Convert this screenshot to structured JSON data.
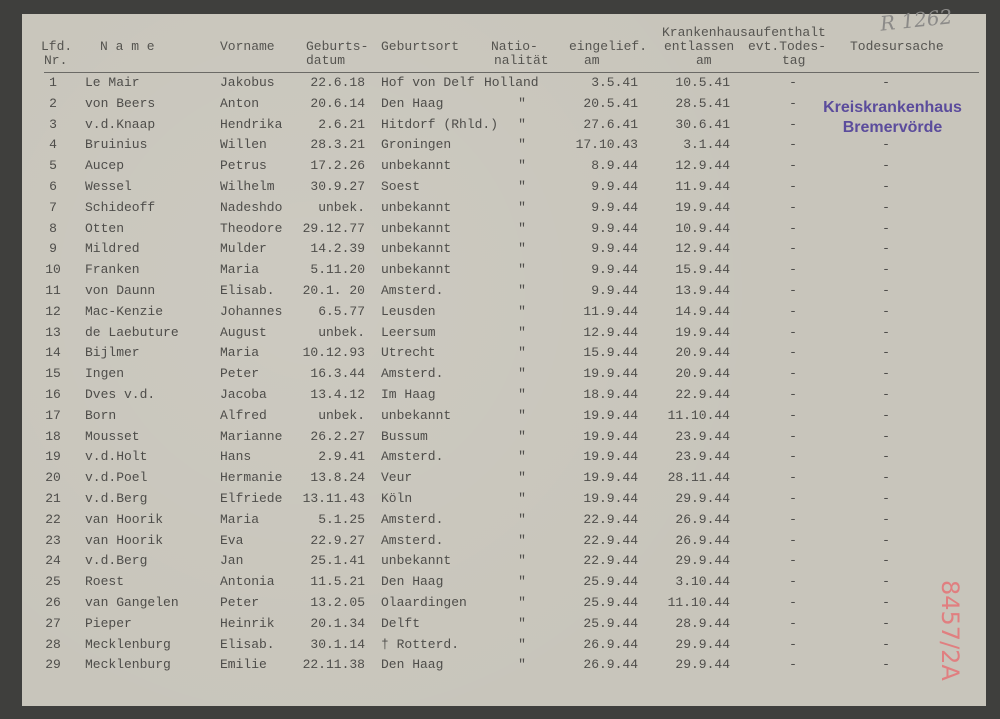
{
  "document": {
    "headers": {
      "lfd_nr": [
        "Lfd.",
        "Nr."
      ],
      "name": "N a m e",
      "vorname": "Vorname",
      "geburtsdatum": [
        "Geburts-",
        "datum"
      ],
      "geburtsort": "Geburtsort",
      "nationalitaet": [
        "Natio-",
        "nalität"
      ],
      "group": "Krankenhausaufenthalt",
      "eingeliefert": [
        "eingelief.",
        "am"
      ],
      "entlassen": [
        "entlassen",
        "am"
      ],
      "todestag": [
        "evt.Todes-",
        "tag"
      ],
      "todesursache": "Todesursache"
    },
    "rows": [
      [
        "1",
        "Le Mair",
        "Jakobus",
        "22.6.18",
        "Hof von Delf",
        "Holland",
        "3.5.41",
        "10.5.41",
        "-",
        "-"
      ],
      [
        "2",
        "von Beers",
        "Anton",
        "20.6.14",
        "Den Haag",
        "\"",
        "20.5.41",
        "28.5.41",
        "-",
        ""
      ],
      [
        "3",
        "v.d.Knaap",
        "Hendrika",
        "2.6.21",
        "Hitdorf (Rhld.)",
        "\"",
        "27.6.41",
        "30.6.41",
        "-",
        ""
      ],
      [
        "4",
        "Bruinius",
        "Willen",
        "28.3.21",
        "Groningen",
        "\"",
        "17.10.43",
        "3.1.44",
        "-",
        "-"
      ],
      [
        "5",
        "Aucep",
        "Petrus",
        "17.2.26",
        "unbekannt",
        "\"",
        "8.9.44",
        "12.9.44",
        "-",
        "-"
      ],
      [
        "6",
        "Wessel",
        "Wilhelm",
        "30.9.27",
        "Soest",
        "\"",
        "9.9.44",
        "11.9.44",
        "-",
        "-"
      ],
      [
        "7",
        "Schideoff",
        "Nadeshdo",
        "unbek.",
        "unbekannt",
        "\"",
        "9.9.44",
        "19.9.44",
        "-",
        "-"
      ],
      [
        "8",
        "Otten",
        "Theodore",
        "29.12.77",
        "unbekannt",
        "\"",
        "9.9.44",
        "10.9.44",
        "-",
        "-"
      ],
      [
        "9",
        "Mildred",
        "Mulder",
        "14.2.39",
        "unbekannt",
        "\"",
        "9.9.44",
        "12.9.44",
        "-",
        "-"
      ],
      [
        "10",
        "Franken",
        "Maria",
        "5.11.20",
        "unbekannt",
        "\"",
        "9.9.44",
        "15.9.44",
        "-",
        "-"
      ],
      [
        "11",
        "von Daunn",
        "Elisab.",
        "20.1. 20",
        "Amsterd.",
        "\"",
        "9.9.44",
        "13.9.44",
        "-",
        "-"
      ],
      [
        "12",
        "Mac-Kenzie",
        "Johannes",
        "6.5.77",
        "Leusden",
        "\"",
        "11.9.44",
        "14.9.44",
        "-",
        "-"
      ],
      [
        "13",
        "de Laebuture",
        "August",
        "unbek.",
        "Leersum",
        "\"",
        "12.9.44",
        "19.9.44",
        "-",
        "-"
      ],
      [
        "14",
        "Bijlmer",
        "Maria",
        "10.12.93",
        "Utrecht",
        "\"",
        "15.9.44",
        "20.9.44",
        "-",
        "-"
      ],
      [
        "15",
        "Ingen",
        "Peter",
        "16.3.44",
        "Amsterd.",
        "\"",
        "19.9.44",
        "20.9.44",
        "-",
        "-"
      ],
      [
        "16",
        "Dves v.d.",
        "Jacoba",
        "13.4.12",
        "Im Haag",
        "\"",
        "18.9.44",
        "22.9.44",
        "-",
        "-"
      ],
      [
        "17",
        "Born",
        "Alfred",
        "unbek.",
        "unbekannt",
        "\"",
        "19.9.44",
        "11.10.44",
        "-",
        "-"
      ],
      [
        "18",
        "Mousset",
        "Marianne",
        "26.2.27",
        "Bussum",
        "\"",
        "19.9.44",
        "23.9.44",
        "-",
        "-"
      ],
      [
        "19",
        "v.d.Holt",
        "Hans",
        "2.9.41",
        "Amsterd.",
        "\"",
        "19.9.44",
        "23.9.44",
        "-",
        "-"
      ],
      [
        "20",
        "v.d.Poel",
        "Hermanie",
        "13.8.24",
        "Veur",
        "\"",
        "19.9.44",
        "28.11.44",
        "-",
        "-"
      ],
      [
        "21",
        "v.d.Berg",
        "Elfriede",
        "13.11.43",
        "Köln",
        "\"",
        "19.9.44",
        "29.9.44",
        "-",
        "-"
      ],
      [
        "22",
        "van Hoorik",
        "Maria",
        "5.1.25",
        "Amsterd.",
        "\"",
        "22.9.44",
        "26.9.44",
        "-",
        "-"
      ],
      [
        "23",
        "van Hoorik",
        "Eva",
        "22.9.27",
        "Amsterd.",
        "\"",
        "22.9.44",
        "26.9.44",
        "-",
        "-"
      ],
      [
        "24",
        "v.d.Berg",
        "Jan",
        "25.1.41",
        "unbekannt",
        "\"",
        "22.9.44",
        "29.9.44",
        "-",
        "-"
      ],
      [
        "25",
        "Roest",
        "Antonia",
        "11.5.21",
        "Den Haag",
        "\"",
        "25.9.44",
        "3.10.44",
        "-",
        "-"
      ],
      [
        "26",
        "van Gangelen",
        "Peter",
        "13.2.05",
        "Olaardingen",
        "\"",
        "25.9.44",
        "11.10.44",
        "-",
        "-"
      ],
      [
        "27",
        "Pieper",
        "Heinrik",
        "20.1.34",
        "Delft",
        "\"",
        "25.9.44",
        "28.9.44",
        "-",
        "-"
      ],
      [
        "28",
        "Mecklenburg",
        "Elisab.",
        "30.1.14",
        "† Rotterd.",
        "\"",
        "26.9.44",
        "29.9.44",
        "-",
        "-"
      ],
      [
        "29",
        "Mecklenburg",
        "Emilie",
        "22.11.38",
        "Den Haag",
        "\"",
        "26.9.44",
        "29.9.44",
        "-",
        "-"
      ]
    ]
  },
  "stamp": {
    "line1": "Kreiskrankenhaus",
    "line2": "Bremervörde",
    "color": "#5b4c9c"
  },
  "annotations": {
    "pencil_ref": "R 1262",
    "red_ref": "8457/2A",
    "red_color": "#e07f80"
  }
}
